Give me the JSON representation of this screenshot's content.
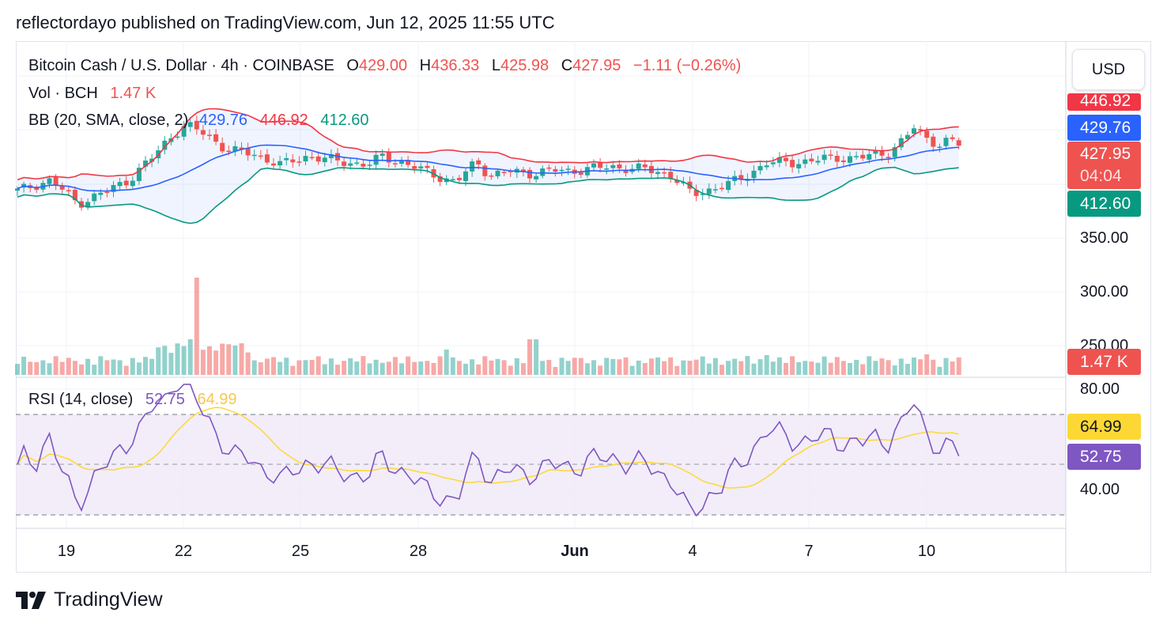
{
  "header": {
    "publish_line": "reflectordayo published on TradingView.com, Jun 12, 2025 11:55 UTC"
  },
  "legend": {
    "symbol": "Bitcoin Cash / U.S. Dollar · 4h · COINBASE",
    "o_label": "O",
    "o_value": "429.00",
    "h_label": "H",
    "h_value": "436.33",
    "l_label": "L",
    "l_value": "425.98",
    "c_label": "C",
    "c_value": "427.95",
    "change": "−1.11 (−0.26%)",
    "vol_label": "Vol · BCH",
    "vol_value": "1.47 K",
    "bb_label": "BB (20, SMA, close, 2)",
    "bb_basis": "429.76",
    "bb_upper": "446.92",
    "bb_lower": "412.60",
    "rsi_label": "RSI (14, close)",
    "rsi_value": "52.75",
    "rsi_ma": "64.99"
  },
  "currency": "USD",
  "price_axis": {
    "ticks": [
      "350.00",
      "300.00",
      "250.00"
    ],
    "tags": {
      "upper": "446.92",
      "basis": "429.76",
      "last_price": "427.95",
      "countdown": "04:04",
      "lower": "412.60",
      "volume": "1.47 K"
    }
  },
  "rsi_axis": {
    "ticks": [
      "80.00",
      "40.00"
    ],
    "tags": {
      "ma": "64.99",
      "rsi": "52.75"
    }
  },
  "time_axis": [
    "19",
    "22",
    "25",
    "28",
    "Jun",
    "4",
    "7",
    "10"
  ],
  "colors": {
    "up": "#26a69a",
    "down": "#ef5350",
    "bb_basis": "#2962ff",
    "bb_upper": "#f23645",
    "bb_lower": "#089981",
    "rsi": "#7e57c2",
    "rsi_ma": "#fdd835"
  },
  "footer": {
    "brand": "TradingView"
  },
  "chart_data": {
    "type": "candlestick",
    "symbol": "BCHUSD",
    "interval": "4h",
    "price_ylim": [
      230,
      460
    ],
    "rsi_ylim": [
      20,
      80
    ],
    "x_range": [
      "May 18",
      "Jun 12"
    ],
    "bands": {
      "upper_last": 446.92,
      "basis_last": 429.76,
      "lower_last": 412.6
    },
    "rsi_last": 52.75,
    "rsi_ma_last": 64.99,
    "volume_last": "1.47 K"
  }
}
